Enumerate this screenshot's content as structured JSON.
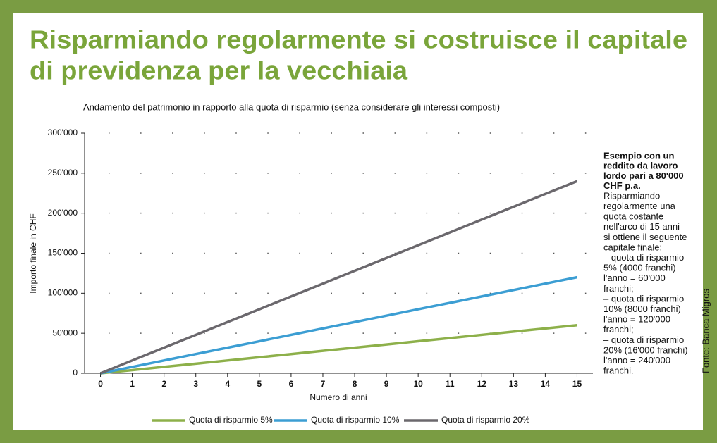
{
  "chart_data": {
    "type": "line",
    "title": [
      "Risparmiando regolarmente si costruisce il capitale",
      "di previdenza per la vecchiaia"
    ],
    "subtitle": "Andamento del patrimonio in rapporto alla quota di risparmio (senza considerare gli interessi composti)",
    "x_label": "Numero di anni",
    "y_label": "Importo finale in CHF",
    "x": [
      0,
      1,
      2,
      3,
      4,
      5,
      6,
      7,
      8,
      9,
      10,
      11,
      12,
      13,
      14,
      15
    ],
    "xlim": [
      -0.5,
      15.5
    ],
    "xticks": [
      0,
      1,
      2,
      3,
      4,
      5,
      6,
      7,
      8,
      9,
      10,
      11,
      12,
      13,
      14,
      15
    ],
    "ylim": [
      0,
      300000
    ],
    "yticks": [
      0,
      {
        "value": 50000,
        "label": "50'000"
      },
      {
        "value": 100000,
        "label": "100'000"
      },
      {
        "value": 150000,
        "label": "150'000"
      },
      {
        "value": 200000,
        "label": "200'000"
      },
      {
        "value": 250000,
        "label": "250'000"
      },
      {
        "value": 300000,
        "label": "300'000"
      }
    ],
    "grid": true,
    "series": [
      {
        "name": "Quota di risparmio 5%",
        "color": "#8db04a",
        "values": [
          0,
          4000,
          8000,
          12000,
          16000,
          20000,
          24000,
          28000,
          32000,
          36000,
          40000,
          44000,
          48000,
          52000,
          56000,
          60000
        ]
      },
      {
        "name": "Quota di risparmio 10%",
        "color": "#3c9ed3",
        "values": [
          0,
          8000,
          16000,
          24000,
          32000,
          40000,
          48000,
          56000,
          64000,
          72000,
          80000,
          88000,
          96000,
          104000,
          112000,
          120000
        ]
      },
      {
        "name": "Quota di risparmio 20%",
        "color": "#6b686d",
        "values": [
          0,
          16000,
          32000,
          48000,
          64000,
          80000,
          96000,
          112000,
          128000,
          144000,
          160000,
          176000,
          192000,
          208000,
          224000,
          240000
        ]
      }
    ],
    "note": {
      "heading": [
        "Esempio con un",
        "reddito da lavoro",
        "lordo pari a 80'000",
        "CHF p.a."
      ],
      "lines": [
        "Risparmiando",
        "regolarmente una",
        "quota costante",
        "nell'arco di 15 anni",
        "si ottiene il seguente",
        "capitale finale:",
        "– quota di risparmio",
        "5% (4000 franchi)",
        "l'anno = 60'000",
        "franchi;",
        "– quota di risparmio",
        "10% (8000 franchi)",
        "l'anno = 120'000",
        "franchi;",
        "– quota di risparmio",
        "20% (16'000 franchi)",
        "l'anno = 240'000",
        "franchi."
      ]
    },
    "source": "Fonte: Banca Migros"
  }
}
